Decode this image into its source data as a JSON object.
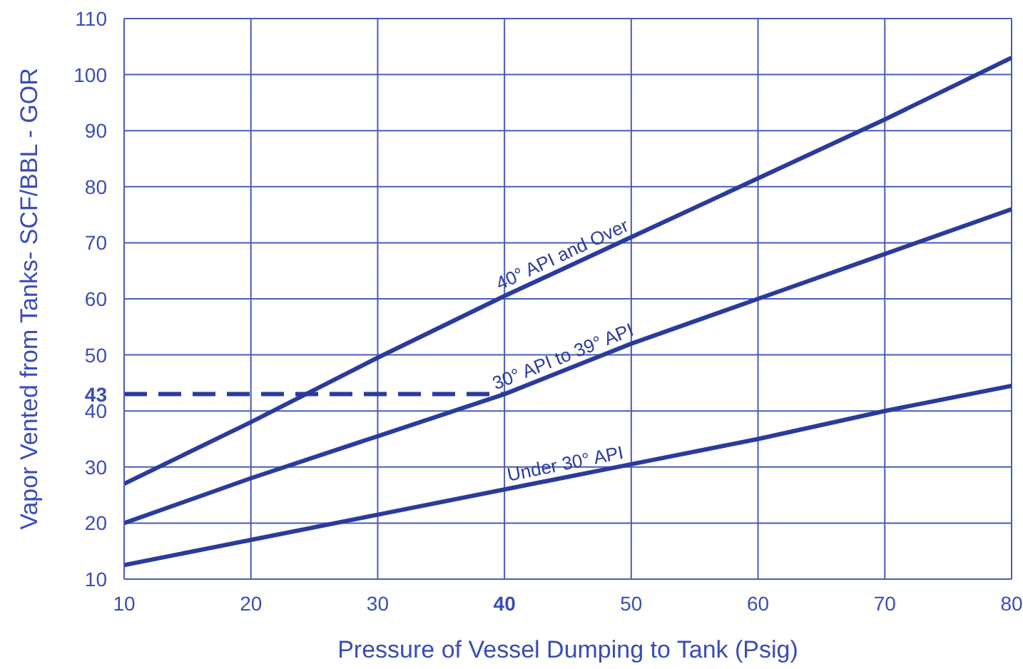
{
  "chart_data": {
    "type": "line",
    "xlabel": "Pressure of Vessel Dumping to Tank  (Psig)",
    "ylabel": "Vapor Vented from Tanks- SCF/BBL - GOR",
    "x": [
      10,
      20,
      30,
      40,
      50,
      60,
      70,
      80
    ],
    "series": [
      {
        "name": "40° API and Over",
        "color": "#2a3b9c",
        "values": [
          27,
          38,
          49.5,
          60.5,
          71,
          81.5,
          92,
          103
        ]
      },
      {
        "name": "30° API to 39° API",
        "color": "#2a3b9c",
        "values": [
          20,
          28,
          35.5,
          43,
          52,
          60,
          68,
          76
        ]
      },
      {
        "name": "Under 30° API",
        "color": "#2a3b9c",
        "values": [
          12.5,
          17,
          21.5,
          26,
          30.5,
          35,
          40,
          44.5
        ]
      },
      {
        "color": "#2a3b9c",
        "x": [
          10,
          40
        ],
        "values": [
          43,
          43
        ],
        "line_style": "dashed"
      }
    ],
    "xlim": [
      10,
      80
    ],
    "xticks": [
      10,
      20,
      30,
      40,
      50,
      60,
      70,
      80
    ],
    "ylim": [
      10,
      110
    ],
    "yticks": [
      10,
      20,
      30,
      40,
      43,
      50,
      60,
      70,
      80,
      90,
      100,
      110
    ],
    "grid": true,
    "marker": "none",
    "line_style": "solid"
  }
}
